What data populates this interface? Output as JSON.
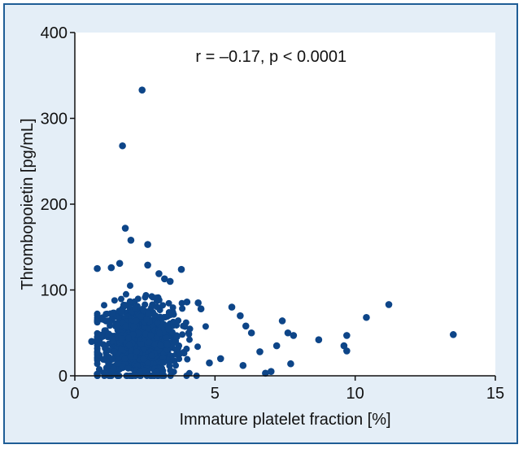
{
  "chart_data": {
    "type": "scatter",
    "title": "",
    "xlabel": "Immature platelet fraction [%]",
    "ylabel": "Thrombopoietin [pg/mL]",
    "xlim": [
      0,
      15
    ],
    "ylim": [
      0,
      400
    ],
    "xticks": [
      0,
      5,
      10,
      15
    ],
    "yticks": [
      0,
      100,
      200,
      300,
      400
    ],
    "annotation": "r = –0.17, p < 0.0001",
    "marker_color": "#0d4588",
    "panel_color": "#ffffff",
    "background_color": "#e4eef7",
    "border_color": "#1f5d96",
    "grid": false,
    "outliers": [
      [
        2.4,
        333
      ],
      [
        1.7,
        268
      ],
      [
        1.8,
        172
      ],
      [
        2.0,
        158
      ],
      [
        2.6,
        153
      ],
      [
        1.6,
        131
      ],
      [
        0.8,
        125
      ],
      [
        1.3,
        126
      ],
      [
        2.6,
        129
      ],
      [
        3.8,
        124
      ],
      [
        3.4,
        110
      ],
      [
        3.2,
        113
      ],
      [
        3.0,
        119
      ],
      [
        11.2,
        83
      ],
      [
        10.4,
        68
      ],
      [
        13.5,
        48
      ],
      [
        9.7,
        47
      ],
      [
        9.6,
        35
      ],
      [
        9.7,
        29
      ],
      [
        8.7,
        42
      ],
      [
        7.8,
        47
      ],
      [
        7.4,
        64
      ],
      [
        7.6,
        50
      ],
      [
        7.2,
        35
      ],
      [
        7.0,
        5
      ],
      [
        6.8,
        3
      ],
      [
        6.3,
        50
      ],
      [
        6.1,
        58
      ],
      [
        5.6,
        80
      ],
      [
        5.9,
        70
      ],
      [
        4.5,
        78
      ],
      [
        4.4,
        85
      ],
      [
        4.0,
        86
      ],
      [
        6.6,
        28
      ],
      [
        5.2,
        20
      ],
      [
        0.6,
        40
      ],
      [
        0.8,
        2
      ],
      [
        7.7,
        14
      ],
      [
        6.0,
        12
      ],
      [
        4.8,
        15
      ]
    ],
    "cluster": {
      "center_x": 2.3,
      "spread_x": 0.75,
      "x_min": 0.8,
      "x_max": 5.5,
      "center_y": 40,
      "spread_y": 22,
      "y_min": 0,
      "y_max": 105,
      "count": 900
    }
  }
}
